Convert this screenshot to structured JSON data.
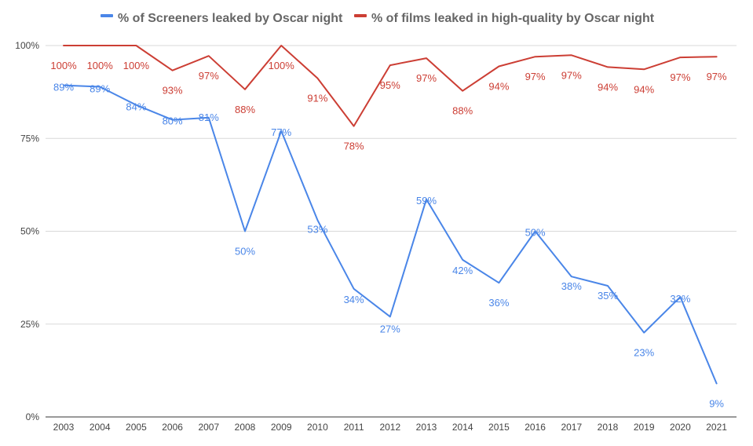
{
  "chart_data": {
    "type": "line",
    "title": "",
    "xlabel": "",
    "ylabel": "",
    "x": [
      "2003",
      "2004",
      "2005",
      "2006",
      "2007",
      "2008",
      "2009",
      "2010",
      "2011",
      "2012",
      "2013",
      "2014",
      "2015",
      "2016",
      "2017",
      "2018",
      "2019",
      "2020",
      "2021"
    ],
    "ylim": [
      0,
      100
    ],
    "yticks": [
      0,
      25,
      50,
      75,
      100
    ],
    "ytick_labels": [
      "0%",
      "25%",
      "50%",
      "75%",
      "100%"
    ],
    "grid": true,
    "legend_position": "top",
    "series": [
      {
        "name": "% of Screeners leaked by Oscar night",
        "color": "#4a86e8",
        "values": [
          89.3,
          88.9,
          84,
          80,
          80.6,
          50,
          77,
          53,
          34.5,
          27,
          58.6,
          42.3,
          36.1,
          50,
          37.8,
          35.3,
          22.7,
          32.3,
          9
        ],
        "labels": [
          "89%",
          "89%",
          "84%",
          "80%",
          "81%",
          "50%",
          "77%",
          "53%",
          "34%",
          "27%",
          "59%",
          "42%",
          "36%",
          "50%",
          "38%",
          "35%",
          "23%",
          "32%",
          "9%"
        ]
      },
      {
        "name": "% of films leaked in high-quality by Oscar night",
        "color": "#cc3e34",
        "values": [
          100,
          100,
          100,
          93.3,
          97.2,
          88.2,
          100,
          91.2,
          78.3,
          94.7,
          96.6,
          87.8,
          94.4,
          97,
          97.4,
          94.2,
          93.6,
          96.8,
          97
        ],
        "labels": [
          "100%",
          "100%",
          "100%",
          "93%",
          "97%",
          "88%",
          "100%",
          "91%",
          "78%",
          "95%",
          "97%",
          "88%",
          "94%",
          "97%",
          "97%",
          "94%",
          "94%",
          "97%",
          "97%"
        ]
      }
    ]
  }
}
